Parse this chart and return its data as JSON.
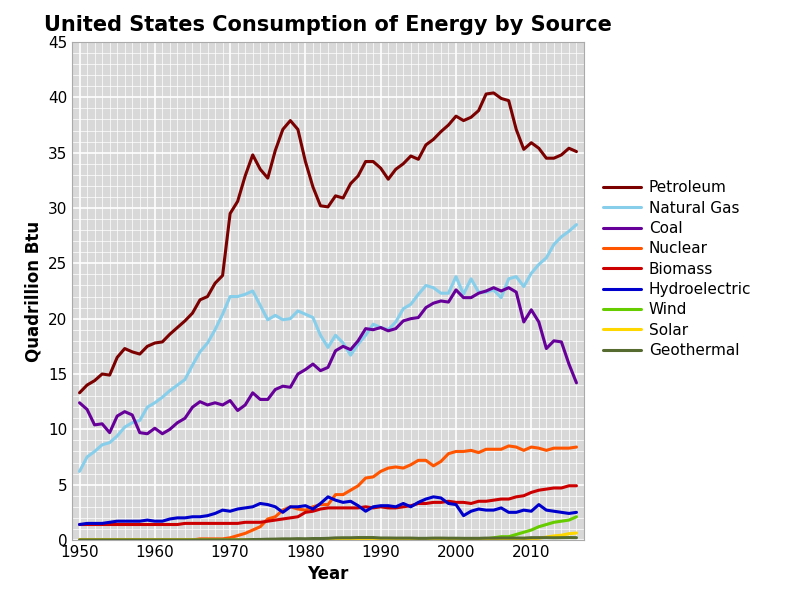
{
  "title": "United States Consumption of Energy by Source",
  "xlabel": "Year",
  "ylabel": "Quadrillion Btu",
  "ylim": [
    0,
    45
  ],
  "xlim": [
    1949,
    2017
  ],
  "yticks": [
    0,
    5,
    10,
    15,
    20,
    25,
    30,
    35,
    40,
    45
  ],
  "xticks": [
    1950,
    1960,
    1970,
    1980,
    1990,
    2000,
    2010
  ],
  "series": {
    "Petroleum": {
      "color": "#7B0000",
      "lw": 2.2,
      "years": [
        1950,
        1951,
        1952,
        1953,
        1954,
        1955,
        1956,
        1957,
        1958,
        1959,
        1960,
        1961,
        1962,
        1963,
        1964,
        1965,
        1966,
        1967,
        1968,
        1969,
        1970,
        1971,
        1972,
        1973,
        1974,
        1975,
        1976,
        1977,
        1978,
        1979,
        1980,
        1981,
        1982,
        1983,
        1984,
        1985,
        1986,
        1987,
        1988,
        1989,
        1990,
        1991,
        1992,
        1993,
        1994,
        1995,
        1996,
        1997,
        1998,
        1999,
        2000,
        2001,
        2002,
        2003,
        2004,
        2005,
        2006,
        2007,
        2008,
        2009,
        2010,
        2011,
        2012,
        2013,
        2014,
        2015,
        2016
      ],
      "values": [
        13.3,
        14.0,
        14.4,
        15.0,
        14.9,
        16.5,
        17.3,
        17.0,
        16.8,
        17.5,
        17.8,
        17.9,
        18.6,
        19.2,
        19.8,
        20.5,
        21.7,
        22.0,
        23.2,
        23.9,
        29.5,
        30.6,
        32.9,
        34.8,
        33.5,
        32.7,
        35.2,
        37.1,
        37.9,
        37.1,
        34.2,
        31.9,
        30.2,
        30.1,
        31.1,
        30.9,
        32.2,
        32.9,
        34.2,
        34.2,
        33.6,
        32.6,
        33.5,
        34.0,
        34.7,
        34.4,
        35.7,
        36.2,
        36.9,
        37.5,
        38.3,
        37.9,
        38.2,
        38.8,
        40.3,
        40.4,
        39.9,
        39.7,
        37.1,
        35.3,
        35.9,
        35.4,
        34.5,
        34.5,
        34.8,
        35.4,
        35.1
      ]
    },
    "Natural Gas": {
      "color": "#87CEEB",
      "lw": 2.2,
      "years": [
        1950,
        1951,
        1952,
        1953,
        1954,
        1955,
        1956,
        1957,
        1958,
        1959,
        1960,
        1961,
        1962,
        1963,
        1964,
        1965,
        1966,
        1967,
        1968,
        1969,
        1970,
        1971,
        1972,
        1973,
        1974,
        1975,
        1976,
        1977,
        1978,
        1979,
        1980,
        1981,
        1982,
        1983,
        1984,
        1985,
        1986,
        1987,
        1988,
        1989,
        1990,
        1991,
        1992,
        1993,
        1994,
        1995,
        1996,
        1997,
        1998,
        1999,
        2000,
        2001,
        2002,
        2003,
        2004,
        2005,
        2006,
        2007,
        2008,
        2009,
        2010,
        2011,
        2012,
        2013,
        2014,
        2015,
        2016
      ],
      "values": [
        6.2,
        7.5,
        8.0,
        8.6,
        8.8,
        9.4,
        10.2,
        10.6,
        10.8,
        12.0,
        12.4,
        12.9,
        13.5,
        14.0,
        14.5,
        15.8,
        17.0,
        17.8,
        19.0,
        20.4,
        22.0,
        22.0,
        22.2,
        22.5,
        21.2,
        19.9,
        20.3,
        19.9,
        20.0,
        20.7,
        20.4,
        20.1,
        18.5,
        17.4,
        18.5,
        17.8,
        16.7,
        17.7,
        18.5,
        19.5,
        19.2,
        19.0,
        19.7,
        20.9,
        21.3,
        22.2,
        23.0,
        22.8,
        22.3,
        22.3,
        23.8,
        22.2,
        23.6,
        22.4,
        22.4,
        22.6,
        21.9,
        23.6,
        23.8,
        22.9,
        24.1,
        24.9,
        25.5,
        26.7,
        27.4,
        27.9,
        28.5
      ]
    },
    "Coal": {
      "color": "#660099",
      "lw": 2.2,
      "years": [
        1950,
        1951,
        1952,
        1953,
        1954,
        1955,
        1956,
        1957,
        1958,
        1959,
        1960,
        1961,
        1962,
        1963,
        1964,
        1965,
        1966,
        1967,
        1968,
        1969,
        1970,
        1971,
        1972,
        1973,
        1974,
        1975,
        1976,
        1977,
        1978,
        1979,
        1980,
        1981,
        1982,
        1983,
        1984,
        1985,
        1986,
        1987,
        1988,
        1989,
        1990,
        1991,
        1992,
        1993,
        1994,
        1995,
        1996,
        1997,
        1998,
        1999,
        2000,
        2001,
        2002,
        2003,
        2004,
        2005,
        2006,
        2007,
        2008,
        2009,
        2010,
        2011,
        2012,
        2013,
        2014,
        2015,
        2016
      ],
      "values": [
        12.4,
        11.8,
        10.4,
        10.5,
        9.7,
        11.2,
        11.6,
        11.3,
        9.7,
        9.6,
        10.1,
        9.6,
        10.0,
        10.6,
        11.0,
        12.0,
        12.5,
        12.2,
        12.4,
        12.2,
        12.6,
        11.7,
        12.2,
        13.3,
        12.7,
        12.7,
        13.6,
        13.9,
        13.8,
        15.0,
        15.4,
        15.9,
        15.3,
        15.6,
        17.1,
        17.5,
        17.2,
        18.0,
        19.1,
        19.0,
        19.2,
        18.9,
        19.1,
        19.8,
        20.0,
        20.1,
        21.0,
        21.4,
        21.6,
        21.5,
        22.6,
        21.9,
        21.9,
        22.3,
        22.5,
        22.8,
        22.5,
        22.8,
        22.4,
        19.7,
        20.8,
        19.7,
        17.3,
        18.0,
        17.9,
        15.9,
        14.2
      ]
    },
    "Nuclear": {
      "color": "#FF5500",
      "lw": 2.2,
      "years": [
        1950,
        1951,
        1952,
        1953,
        1954,
        1955,
        1956,
        1957,
        1958,
        1959,
        1960,
        1961,
        1962,
        1963,
        1964,
        1965,
        1966,
        1967,
        1968,
        1969,
        1970,
        1971,
        1972,
        1973,
        1974,
        1975,
        1976,
        1977,
        1978,
        1979,
        1980,
        1981,
        1982,
        1983,
        1984,
        1985,
        1986,
        1987,
        1988,
        1989,
        1990,
        1991,
        1992,
        1993,
        1994,
        1995,
        1996,
        1997,
        1998,
        1999,
        2000,
        2001,
        2002,
        2003,
        2004,
        2005,
        2006,
        2007,
        2008,
        2009,
        2010,
        2011,
        2012,
        2013,
        2014,
        2015,
        2016
      ],
      "values": [
        0.0,
        0.0,
        0.0,
        0.0,
        0.0,
        0.0,
        0.0,
        0.0,
        0.0,
        0.0,
        0.0,
        0.0,
        0.0,
        0.0,
        0.0,
        0.0,
        0.1,
        0.1,
        0.1,
        0.1,
        0.2,
        0.4,
        0.6,
        0.9,
        1.2,
        1.9,
        2.1,
        2.7,
        3.0,
        2.8,
        2.7,
        3.0,
        3.2,
        3.2,
        4.1,
        4.1,
        4.5,
        4.9,
        5.6,
        5.7,
        6.2,
        6.5,
        6.6,
        6.5,
        6.8,
        7.2,
        7.2,
        6.7,
        7.1,
        7.8,
        8.0,
        8.0,
        8.1,
        7.9,
        8.2,
        8.2,
        8.2,
        8.5,
        8.4,
        8.1,
        8.4,
        8.3,
        8.1,
        8.3,
        8.3,
        8.3,
        8.4
      ]
    },
    "Biomass": {
      "color": "#CC0000",
      "lw": 2.2,
      "years": [
        1950,
        1951,
        1952,
        1953,
        1954,
        1955,
        1956,
        1957,
        1958,
        1959,
        1960,
        1961,
        1962,
        1963,
        1964,
        1965,
        1966,
        1967,
        1968,
        1969,
        1970,
        1971,
        1972,
        1973,
        1974,
        1975,
        1976,
        1977,
        1978,
        1979,
        1980,
        1981,
        1982,
        1983,
        1984,
        1985,
        1986,
        1987,
        1988,
        1989,
        1990,
        1991,
        1992,
        1993,
        1994,
        1995,
        1996,
        1997,
        1998,
        1999,
        2000,
        2001,
        2002,
        2003,
        2004,
        2005,
        2006,
        2007,
        2008,
        2009,
        2010,
        2011,
        2012,
        2013,
        2014,
        2015,
        2016
      ],
      "values": [
        1.4,
        1.4,
        1.4,
        1.4,
        1.4,
        1.4,
        1.4,
        1.4,
        1.4,
        1.4,
        1.4,
        1.4,
        1.4,
        1.4,
        1.5,
        1.5,
        1.5,
        1.5,
        1.5,
        1.5,
        1.5,
        1.5,
        1.6,
        1.6,
        1.6,
        1.7,
        1.8,
        1.9,
        2.0,
        2.1,
        2.5,
        2.6,
        2.8,
        2.9,
        2.9,
        2.9,
        2.9,
        2.9,
        3.0,
        2.9,
        3.0,
        2.9,
        2.9,
        3.0,
        3.1,
        3.3,
        3.3,
        3.4,
        3.4,
        3.5,
        3.4,
        3.4,
        3.3,
        3.5,
        3.5,
        3.6,
        3.7,
        3.7,
        3.9,
        4.0,
        4.3,
        4.5,
        4.6,
        4.7,
        4.7,
        4.9,
        4.9
      ]
    },
    "Hydroelectric": {
      "color": "#0000CC",
      "lw": 2.2,
      "years": [
        1950,
        1951,
        1952,
        1953,
        1954,
        1955,
        1956,
        1957,
        1958,
        1959,
        1960,
        1961,
        1962,
        1963,
        1964,
        1965,
        1966,
        1967,
        1968,
        1969,
        1970,
        1971,
        1972,
        1973,
        1974,
        1975,
        1976,
        1977,
        1978,
        1979,
        1980,
        1981,
        1982,
        1983,
        1984,
        1985,
        1986,
        1987,
        1988,
        1989,
        1990,
        1991,
        1992,
        1993,
        1994,
        1995,
        1996,
        1997,
        1998,
        1999,
        2000,
        2001,
        2002,
        2003,
        2004,
        2005,
        2006,
        2007,
        2008,
        2009,
        2010,
        2011,
        2012,
        2013,
        2014,
        2015,
        2016
      ],
      "values": [
        1.4,
        1.5,
        1.5,
        1.5,
        1.6,
        1.7,
        1.7,
        1.7,
        1.7,
        1.8,
        1.7,
        1.7,
        1.9,
        2.0,
        2.0,
        2.1,
        2.1,
        2.2,
        2.4,
        2.7,
        2.6,
        2.8,
        2.9,
        3.0,
        3.3,
        3.2,
        3.0,
        2.5,
        3.0,
        3.0,
        3.1,
        2.8,
        3.3,
        3.9,
        3.6,
        3.4,
        3.5,
        3.1,
        2.6,
        3.0,
        3.1,
        3.1,
        3.0,
        3.3,
        3.0,
        3.4,
        3.7,
        3.9,
        3.8,
        3.3,
        3.2,
        2.2,
        2.6,
        2.8,
        2.7,
        2.7,
        2.9,
        2.5,
        2.5,
        2.7,
        2.6,
        3.2,
        2.7,
        2.6,
        2.5,
        2.4,
        2.5
      ]
    },
    "Wind": {
      "color": "#66CC00",
      "lw": 2.2,
      "years": [
        1950,
        1951,
        1952,
        1953,
        1954,
        1955,
        1956,
        1957,
        1958,
        1959,
        1960,
        1961,
        1962,
        1963,
        1964,
        1965,
        1966,
        1967,
        1968,
        1969,
        1970,
        1971,
        1972,
        1973,
        1974,
        1975,
        1976,
        1977,
        1978,
        1979,
        1980,
        1981,
        1982,
        1983,
        1984,
        1985,
        1986,
        1987,
        1988,
        1989,
        1990,
        1991,
        1992,
        1993,
        1994,
        1995,
        1996,
        1997,
        1998,
        1999,
        2000,
        2001,
        2002,
        2003,
        2004,
        2005,
        2006,
        2007,
        2008,
        2009,
        2010,
        2011,
        2012,
        2013,
        2014,
        2015,
        2016
      ],
      "values": [
        0.0,
        0.0,
        0.0,
        0.0,
        0.0,
        0.0,
        0.0,
        0.0,
        0.0,
        0.0,
        0.0,
        0.0,
        0.0,
        0.0,
        0.0,
        0.0,
        0.0,
        0.0,
        0.0,
        0.0,
        0.0,
        0.0,
        0.0,
        0.0,
        0.0,
        0.0,
        0.0,
        0.0,
        0.0,
        0.0,
        0.0,
        0.0,
        0.0,
        0.0,
        0.0,
        0.0,
        0.0,
        0.0,
        0.0,
        0.0,
        0.0,
        0.0,
        0.0,
        0.0,
        0.0,
        0.0,
        0.0,
        0.0,
        0.0,
        0.0,
        0.06,
        0.07,
        0.1,
        0.1,
        0.1,
        0.2,
        0.3,
        0.3,
        0.5,
        0.7,
        0.9,
        1.2,
        1.4,
        1.6,
        1.7,
        1.8,
        2.1
      ]
    },
    "Solar": {
      "color": "#FFD700",
      "lw": 2.2,
      "years": [
        1950,
        1951,
        1952,
        1953,
        1954,
        1955,
        1956,
        1957,
        1958,
        1959,
        1960,
        1961,
        1962,
        1963,
        1964,
        1965,
        1966,
        1967,
        1968,
        1969,
        1970,
        1971,
        1972,
        1973,
        1974,
        1975,
        1976,
        1977,
        1978,
        1979,
        1980,
        1981,
        1982,
        1983,
        1984,
        1985,
        1986,
        1987,
        1988,
        1989,
        1990,
        1991,
        1992,
        1993,
        1994,
        1995,
        1996,
        1997,
        1998,
        1999,
        2000,
        2001,
        2002,
        2003,
        2004,
        2005,
        2006,
        2007,
        2008,
        2009,
        2010,
        2011,
        2012,
        2013,
        2014,
        2015,
        2016
      ],
      "values": [
        0.0,
        0.0,
        0.0,
        0.0,
        0.0,
        0.0,
        0.0,
        0.0,
        0.0,
        0.0,
        0.0,
        0.0,
        0.0,
        0.0,
        0.0,
        0.0,
        0.0,
        0.0,
        0.0,
        0.0,
        0.0,
        0.0,
        0.0,
        0.0,
        0.0,
        0.0,
        0.0,
        0.0,
        0.0,
        0.0,
        0.0,
        0.0,
        0.0,
        0.0,
        0.0,
        0.0,
        0.0,
        0.0,
        0.0,
        0.0,
        0.0,
        0.06,
        0.06,
        0.07,
        0.07,
        0.07,
        0.07,
        0.07,
        0.07,
        0.08,
        0.07,
        0.07,
        0.07,
        0.07,
        0.07,
        0.06,
        0.07,
        0.08,
        0.09,
        0.1,
        0.11,
        0.16,
        0.26,
        0.37,
        0.43,
        0.57,
        0.63
      ]
    },
    "Geothermal": {
      "color": "#556B2F",
      "lw": 2.2,
      "years": [
        1950,
        1951,
        1952,
        1953,
        1954,
        1955,
        1956,
        1957,
        1958,
        1959,
        1960,
        1961,
        1962,
        1963,
        1964,
        1965,
        1966,
        1967,
        1968,
        1969,
        1970,
        1971,
        1972,
        1973,
        1974,
        1975,
        1976,
        1977,
        1978,
        1979,
        1980,
        1981,
        1982,
        1983,
        1984,
        1985,
        1986,
        1987,
        1988,
        1989,
        1990,
        1991,
        1992,
        1993,
        1994,
        1995,
        1996,
        1997,
        1998,
        1999,
        2000,
        2001,
        2002,
        2003,
        2004,
        2005,
        2006,
        2007,
        2008,
        2009,
        2010,
        2011,
        2012,
        2013,
        2014,
        2015,
        2016
      ],
      "values": [
        0.0,
        0.0,
        0.0,
        0.0,
        0.0,
        0.0,
        0.0,
        0.0,
        0.0,
        0.0,
        0.0,
        0.0,
        0.0,
        0.0,
        0.0,
        0.0,
        0.01,
        0.01,
        0.01,
        0.01,
        0.01,
        0.01,
        0.02,
        0.04,
        0.05,
        0.07,
        0.08,
        0.1,
        0.1,
        0.12,
        0.11,
        0.13,
        0.13,
        0.15,
        0.19,
        0.2,
        0.2,
        0.22,
        0.22,
        0.22,
        0.18,
        0.18,
        0.17,
        0.17,
        0.17,
        0.15,
        0.15,
        0.17,
        0.17,
        0.16,
        0.16,
        0.15,
        0.15,
        0.15,
        0.17,
        0.17,
        0.18,
        0.18,
        0.18,
        0.17,
        0.21,
        0.21,
        0.21,
        0.2,
        0.21,
        0.22,
        0.21
      ]
    }
  },
  "fig_bg": "#ffffff",
  "plot_bg": "#d8d8d8",
  "grid_color": "#ffffff",
  "figsize": [
    8.0,
    6.0
  ],
  "dpi": 100,
  "title_fontsize": 15,
  "axis_label_fontsize": 12,
  "tick_fontsize": 11,
  "legend_fontsize": 11
}
